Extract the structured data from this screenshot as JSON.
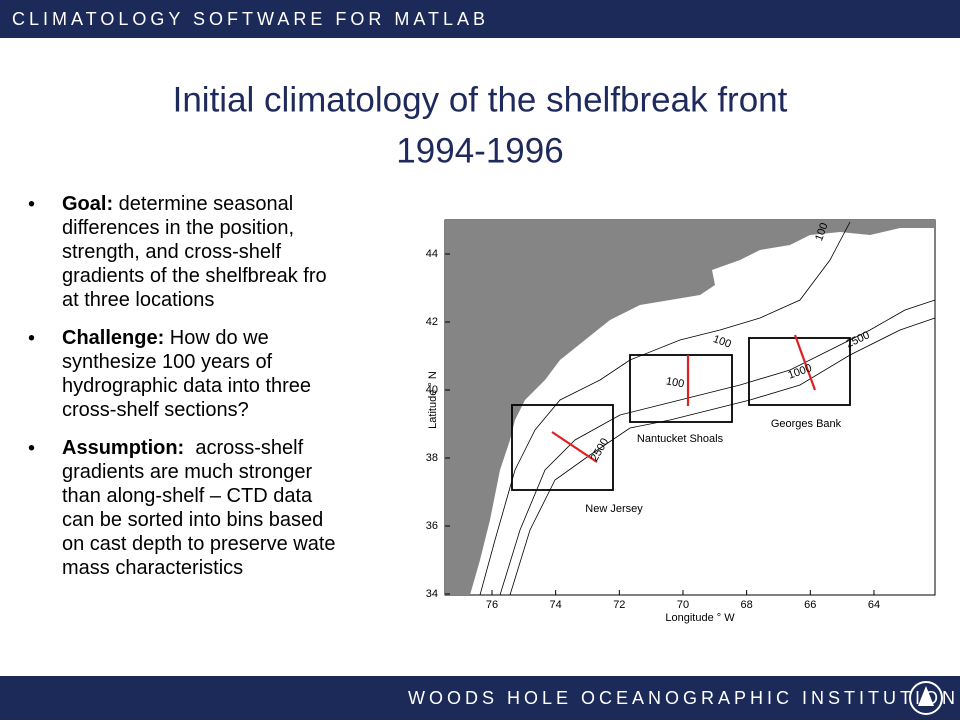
{
  "header": {
    "text": "CLIMATOLOGY SOFTWARE FOR MATLAB"
  },
  "title": {
    "lines": [
      "Initial climatology of the shelfbreak front",
      "1994-1996"
    ]
  },
  "bullets": [
    {
      "lead": "Goal:",
      "lines": [
        " determine seasonal",
        "differences in the position,",
        "strength, and cross-shelf",
        "gradients of the shelfbreak fro",
        "at three locations"
      ]
    },
    {
      "lead": "Challenge:",
      "lines": [
        " How do we",
        "synthesize 100 years of",
        "hydrographic data into three",
        "cross-shelf sections?"
      ]
    },
    {
      "lead": "Assumption:",
      "lines": [
        "  across-shelf",
        "gradients are much stronger",
        "than along-shelf – CTD data",
        "can be sorted into bins based",
        "on cast depth to preserve wate",
        "mass characteristics"
      ]
    }
  ],
  "map": {
    "lat_ticks": [
      34,
      36,
      38,
      40,
      42,
      44
    ],
    "lon_ticks": [
      76,
      74,
      72,
      70,
      68,
      66,
      64
    ],
    "x_label": "Longitude ° W",
    "y_label": "Latitude ° N",
    "regions": [
      "New Jersey",
      "Nantucket Shoals",
      "Georges Bank"
    ],
    "contour_labels": [
      "100",
      "100",
      "2500",
      "100",
      "1000",
      "2500"
    ]
  },
  "footer": {
    "text": "WOODS HOLE OCEANOGRAPHIC INSTITUTION"
  }
}
